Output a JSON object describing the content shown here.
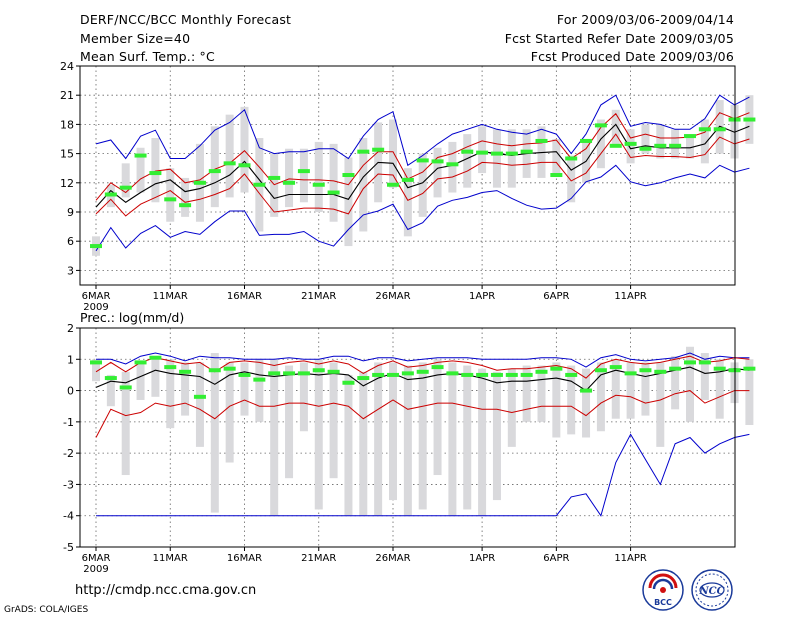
{
  "header": {
    "title": "DERF/NCC/BCC Monthly Forecast",
    "member_size": "Member Size=40",
    "variable": "Mean Surf. Temp.: °C",
    "forecast_range": "For 2009/03/06-2009/04/14",
    "started": "Fcst Started Refer Date 2009/03/05",
    "produced": "Fcst Produced Date 2009/03/06"
  },
  "footer": {
    "url": "http://cmdp.ncc.cma.gov.cn",
    "credit": "GrADS: COLA/IGES",
    "logo_left": "BCC",
    "logo_right": "NCC"
  },
  "colors": {
    "box": "#d9d9dc",
    "mean": "#000000",
    "inner": "#cc0000",
    "outer": "#0000cc",
    "member": "#33ee33"
  },
  "chart_data": [
    {
      "type": "line",
      "title": "Mean Surf. Temp.: °C",
      "x_tick_labels": [
        "6MAR",
        "11MAR",
        "16MAR",
        "21MAR",
        "26MAR",
        "1APR",
        "6APR",
        "11APR"
      ],
      "x_tick_index": [
        0,
        5,
        10,
        15,
        20,
        26,
        31,
        36
      ],
      "year_label": "2009",
      "ylim": [
        1.5,
        24
      ],
      "y_ticks": [
        3,
        6,
        9,
        12,
        15,
        18,
        21,
        24
      ],
      "grid": true,
      "series": [
        {
          "name": "mean",
          "values": [
            9.5,
            11.2,
            10.0,
            11.0,
            11.9,
            12.3,
            11.1,
            11.4,
            12.0,
            12.8,
            14.2,
            12.3,
            10.4,
            10.8,
            10.8,
            10.8,
            10.8,
            10.3,
            12.6,
            14.1,
            14.0,
            11.5,
            12.0,
            13.5,
            13.8,
            14.5,
            15.2,
            15.0,
            14.8,
            15.0,
            15.1,
            15.2,
            13.3,
            14.2,
            16.5,
            18.0,
            15.5,
            15.8,
            15.6,
            15.6,
            15.6,
            16.0,
            17.8,
            17.2,
            17.8
          ]
        },
        {
          "name": "upper_inner",
          "values": [
            10.2,
            12.0,
            11.0,
            12.4,
            13.2,
            13.4,
            12.0,
            12.3,
            13.4,
            14.0,
            15.3,
            13.6,
            11.8,
            12.4,
            12.3,
            12.3,
            12.2,
            11.8,
            13.8,
            15.2,
            15.2,
            12.4,
            13.1,
            14.6,
            15.0,
            15.7,
            16.3,
            16.0,
            15.8,
            16.0,
            16.1,
            16.4,
            14.5,
            15.5,
            17.7,
            19.1,
            16.6,
            17.0,
            16.6,
            16.6,
            16.7,
            17.2,
            19.2,
            18.6,
            19.2
          ]
        },
        {
          "name": "lower_inner",
          "values": [
            8.8,
            10.3,
            8.6,
            9.8,
            10.5,
            11.2,
            10.0,
            10.3,
            10.8,
            11.4,
            12.9,
            10.9,
            9.0,
            9.2,
            9.4,
            9.4,
            9.3,
            8.8,
            11.4,
            12.9,
            12.8,
            10.2,
            10.9,
            12.4,
            12.6,
            13.2,
            14.1,
            14.0,
            13.8,
            13.9,
            14.1,
            14.1,
            12.2,
            13.0,
            15.0,
            17.0,
            14.6,
            14.8,
            14.7,
            14.7,
            14.6,
            14.9,
            16.7,
            16.0,
            16.5
          ]
        },
        {
          "name": "upper_outer",
          "values": [
            16.0,
            16.4,
            14.5,
            16.8,
            17.4,
            14.5,
            14.5,
            15.8,
            17.4,
            18.2,
            19.5,
            15.6,
            15.0,
            15.2,
            15.2,
            15.5,
            15.5,
            14.5,
            16.8,
            18.5,
            19.3,
            13.8,
            14.8,
            16.0,
            17.0,
            17.5,
            18.0,
            17.5,
            17.2,
            17.0,
            17.5,
            17.0,
            15.0,
            17.0,
            20.0,
            21.0,
            17.8,
            18.2,
            18.0,
            17.5,
            17.5,
            18.6,
            21.0,
            20.0,
            20.8
          ]
        },
        {
          "name": "lower_outer",
          "values": [
            5.0,
            7.4,
            5.3,
            6.8,
            7.6,
            6.4,
            7.0,
            6.7,
            8.0,
            9.1,
            9.1,
            6.6,
            6.7,
            6.7,
            7.0,
            6.0,
            5.5,
            7.2,
            8.7,
            9.1,
            9.8,
            7.2,
            7.9,
            9.6,
            10.2,
            10.5,
            11.0,
            11.2,
            10.4,
            9.7,
            9.3,
            9.4,
            10.4,
            12.1,
            12.6,
            13.8,
            12.1,
            11.7,
            12.0,
            12.5,
            12.9,
            12.5,
            13.8,
            13.1,
            13.5
          ]
        },
        {
          "name": "member",
          "values": [
            5.5,
            10.8,
            11.5,
            14.8,
            13.0,
            10.3,
            9.7,
            12.0,
            13.2,
            14.0,
            13.8,
            11.8,
            12.5,
            12.0,
            13.2,
            11.8,
            11.0,
            12.8,
            15.2,
            15.4,
            11.8,
            12.3,
            14.3,
            14.2,
            13.9,
            15.2,
            15.1,
            15.0,
            15.0,
            15.2,
            16.3,
            12.8,
            14.5,
            16.3,
            17.9,
            15.8,
            16.0,
            15.5,
            15.8,
            15.8,
            16.8,
            17.5,
            17.5,
            18.5,
            18.5
          ]
        },
        {
          "name": "box_top",
          "values": [
            6.5,
            11.8,
            14.0,
            15.6,
            16.6,
            13.5,
            12.5,
            16.0,
            17.8,
            19.0,
            19.8,
            16.6,
            15.0,
            15.5,
            15.5,
            16.2,
            16.0,
            14.6,
            16.6,
            18.2,
            18.5,
            13.5,
            15.0,
            15.6,
            16.2,
            17.0,
            17.8,
            17.5,
            17.5,
            17.5,
            17.8,
            16.5,
            14.8,
            16.5,
            18.5,
            19.5,
            17.5,
            18.0,
            18.0,
            17.5,
            17.0,
            18.5,
            20.5,
            20.0,
            21.0
          ]
        },
        {
          "name": "box_bottom",
          "values": [
            4.5,
            9.5,
            10.5,
            11.0,
            10.0,
            8.0,
            8.5,
            8.0,
            9.5,
            10.5,
            11.0,
            7.0,
            8.5,
            9.5,
            10.0,
            9.0,
            8.0,
            5.5,
            7.0,
            10.0,
            11.5,
            6.5,
            8.5,
            10.5,
            11.0,
            11.5,
            13.0,
            11.5,
            11.5,
            12.5,
            12.5,
            13.0,
            10.0,
            12.0,
            13.5,
            16.0,
            14.0,
            15.0,
            14.5,
            14.5,
            14.5,
            14.0,
            15.0,
            14.5,
            16.0
          ]
        }
      ]
    },
    {
      "type": "line",
      "title": "Prec.: log(mm/d)",
      "x_tick_labels": [
        "6MAR",
        "11MAR",
        "16MAR",
        "21MAR",
        "26MAR",
        "1APR",
        "6APR",
        "11APR"
      ],
      "x_tick_index": [
        0,
        5,
        10,
        15,
        20,
        26,
        31,
        36
      ],
      "year_label": "2009",
      "ylim": [
        -5,
        2
      ],
      "y_ticks": [
        -5,
        -4,
        -3,
        -2,
        -1,
        0,
        1,
        2
      ],
      "grid": true,
      "series": [
        {
          "name": "mean",
          "values": [
            0.1,
            0.3,
            0.25,
            0.45,
            0.65,
            0.55,
            0.5,
            0.45,
            0.2,
            0.5,
            0.6,
            0.5,
            0.45,
            0.5,
            0.55,
            0.5,
            0.55,
            0.5,
            0.15,
            0.4,
            0.55,
            0.35,
            0.4,
            0.5,
            0.55,
            0.5,
            0.4,
            0.25,
            0.3,
            0.3,
            0.35,
            0.4,
            0.3,
            0.0,
            0.5,
            0.65,
            0.55,
            0.45,
            0.55,
            0.65,
            0.75,
            0.55,
            0.6,
            0.7,
            0.65
          ]
        },
        {
          "name": "upper_inner",
          "values": [
            0.6,
            0.9,
            0.6,
            0.9,
            1.05,
            0.95,
            0.85,
            0.9,
            0.6,
            0.9,
            0.95,
            0.9,
            0.8,
            0.9,
            0.95,
            0.85,
            0.95,
            0.85,
            0.55,
            0.8,
            0.95,
            0.75,
            0.8,
            0.9,
            0.95,
            0.9,
            0.8,
            0.65,
            0.7,
            0.7,
            0.75,
            0.8,
            0.7,
            0.4,
            0.85,
            1.0,
            0.9,
            0.85,
            0.9,
            1.0,
            1.1,
            0.9,
            0.95,
            1.05,
            1.0
          ]
        },
        {
          "name": "lower_inner",
          "values": [
            -1.5,
            -0.6,
            -0.8,
            -0.7,
            -0.4,
            -0.5,
            -0.4,
            -0.6,
            -0.9,
            -0.5,
            -0.3,
            -0.5,
            -0.5,
            -0.4,
            -0.4,
            -0.5,
            -0.4,
            -0.5,
            -0.9,
            -0.6,
            -0.3,
            -0.6,
            -0.5,
            -0.4,
            -0.4,
            -0.5,
            -0.6,
            -0.6,
            -0.7,
            -0.6,
            -0.5,
            -0.5,
            -0.5,
            -0.8,
            -0.4,
            -0.15,
            -0.2,
            -0.4,
            -0.3,
            -0.1,
            0.0,
            -0.4,
            -0.2,
            0.0,
            0.0
          ]
        },
        {
          "name": "upper_outer",
          "values": [
            1.0,
            1.0,
            0.85,
            1.1,
            1.2,
            1.1,
            0.95,
            1.1,
            1.05,
            1.05,
            1.0,
            1.0,
            1.0,
            1.05,
            1.0,
            1.0,
            1.1,
            1.1,
            0.95,
            1.05,
            1.05,
            0.95,
            1.0,
            1.05,
            1.05,
            1.05,
            1.0,
            1.0,
            1.0,
            1.0,
            1.05,
            1.05,
            1.0,
            0.75,
            1.05,
            1.15,
            1.0,
            0.95,
            1.0,
            1.05,
            1.2,
            1.0,
            1.1,
            1.05,
            1.05
          ]
        },
        {
          "name": "lower_outer",
          "values": [
            -4.0,
            -4.0,
            -4.0,
            -4.0,
            -4.0,
            -4.0,
            -4.0,
            -4.0,
            -4.0,
            -4.0,
            -4.0,
            -4.0,
            -4.0,
            -4.0,
            -4.0,
            -4.0,
            -4.0,
            -4.0,
            -4.0,
            -4.0,
            -4.0,
            -4.0,
            -4.0,
            -4.0,
            -4.0,
            -4.0,
            -4.0,
            -4.0,
            -4.0,
            -4.0,
            -4.0,
            -4.0,
            -3.4,
            -3.3,
            -4.0,
            -2.3,
            -1.4,
            -2.2,
            -3.0,
            -1.7,
            -1.5,
            -2.0,
            -1.7,
            -1.5,
            -1.4
          ]
        },
        {
          "name": "member",
          "values": [
            0.9,
            0.4,
            0.1,
            0.9,
            1.05,
            0.75,
            0.6,
            -0.2,
            0.65,
            0.7,
            0.5,
            0.35,
            0.55,
            0.55,
            0.55,
            0.65,
            0.6,
            0.25,
            0.4,
            0.5,
            0.5,
            0.55,
            0.6,
            0.75,
            0.55,
            0.5,
            0.5,
            0.5,
            0.5,
            0.5,
            0.6,
            0.7,
            0.5,
            0.0,
            0.65,
            0.75,
            0.55,
            0.65,
            0.6,
            0.7,
            0.9,
            0.9,
            0.7,
            0.65,
            0.7
          ]
        },
        {
          "name": "box_top",
          "values": [
            1.0,
            0.5,
            0.6,
            0.9,
            1.0,
            1.0,
            0.9,
            0.9,
            1.2,
            0.9,
            0.9,
            1.0,
            1.0,
            0.8,
            0.9,
            1.0,
            0.9,
            0.5,
            0.6,
            0.9,
            0.9,
            0.8,
            0.9,
            1.0,
            0.9,
            0.8,
            0.7,
            0.6,
            0.7,
            0.8,
            0.8,
            0.9,
            0.8,
            0.7,
            0.9,
            1.0,
            0.9,
            0.9,
            0.9,
            1.1,
            1.4,
            1.2,
            1.0,
            0.9,
            1.0
          ]
        },
        {
          "name": "box_bottom",
          "values": [
            0.3,
            -0.5,
            -2.7,
            -0.3,
            -0.2,
            -1.2,
            -0.8,
            -1.8,
            -3.9,
            -2.3,
            -0.8,
            -1.0,
            -4.0,
            -2.8,
            -1.3,
            -3.8,
            -2.8,
            -4.0,
            -4.0,
            -4.0,
            -3.5,
            -4.0,
            -3.8,
            -2.7,
            -4.0,
            -3.8,
            -4.0,
            -3.5,
            -1.8,
            -1.0,
            -1.0,
            -1.5,
            -1.4,
            -1.5,
            -1.3,
            -0.9,
            -0.9,
            -0.8,
            -1.8,
            -0.6,
            -1.0,
            -0.3,
            -0.9,
            -0.4,
            -1.1
          ]
        }
      ]
    }
  ]
}
